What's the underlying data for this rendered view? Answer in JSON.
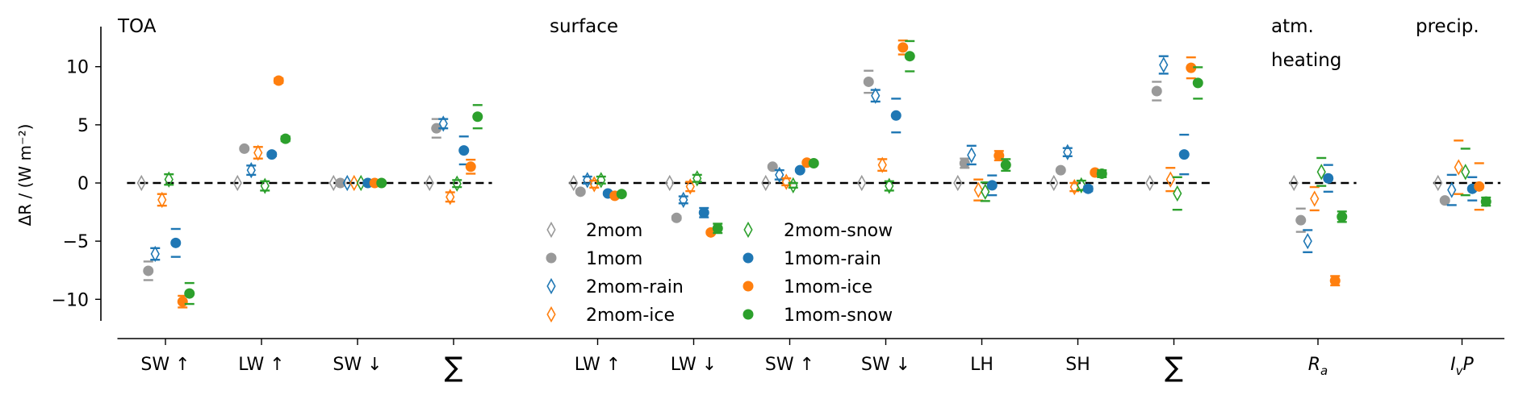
{
  "chart_data": {
    "type": "scatter",
    "ylabel": "ΔR / (W m⁻²)",
    "ylim": [
      -12,
      13
    ],
    "xlim": [
      -0.5,
      14
    ],
    "yticks": [
      -10,
      -5,
      0,
      5,
      10
    ],
    "ytick_labels": [
      "−10",
      "−5",
      "0",
      "5",
      "10"
    ],
    "grid": false,
    "legend_position": "lower-center",
    "section_titles": [
      {
        "lines": [
          "TOA"
        ],
        "x": -0.5
      },
      {
        "lines": [
          "surface"
        ],
        "x": 4.0
      },
      {
        "lines": [
          "atm.",
          "heating"
        ],
        "x": 11.6
      },
      {
        "lines": [
          "precip."
        ],
        "x": 13.1
      }
    ],
    "zero_line_segments": [
      [
        -0.4,
        3.4
      ],
      [
        4.2,
        10.9
      ],
      [
        11.7,
        12.4
      ],
      [
        13.2,
        13.9
      ]
    ],
    "categories": [
      {
        "label": "SW ↑",
        "x": 0
      },
      {
        "label": "LW ↑",
        "x": 1
      },
      {
        "label": "SW ↓",
        "x": 2
      },
      {
        "label": "∑",
        "x": 3,
        "big": true
      },
      {
        "label": "LW ↑",
        "x": 4.5
      },
      {
        "label": "LW ↓",
        "x": 5.5
      },
      {
        "label": "SW ↑",
        "x": 6.5
      },
      {
        "label": "SW ↓",
        "x": 7.5
      },
      {
        "label": "LH",
        "x": 8.5
      },
      {
        "label": "SH",
        "x": 9.5
      },
      {
        "label": "∑",
        "x": 10.5,
        "big": true
      },
      {
        "label": "R",
        "sub": "a",
        "suffix": "",
        "italic": true,
        "x": 12
      },
      {
        "label": "I",
        "sub": "v",
        "suffix": "P",
        "italic": true,
        "x": 13.5
      }
    ],
    "series": [
      {
        "name": "2mom",
        "color": "#999999",
        "marker": "diamond-open",
        "values": [
          0,
          0,
          0,
          0,
          0,
          0,
          0,
          0,
          0,
          0,
          0,
          0,
          0
        ],
        "errors": [
          0,
          0,
          0,
          0,
          0,
          0,
          0,
          0,
          0,
          0,
          0,
          0,
          0
        ]
      },
      {
        "name": "1mom",
        "color": "#999999",
        "marker": "circle",
        "values": [
          -7.55,
          2.95,
          0,
          4.7,
          -0.75,
          -3.0,
          1.4,
          8.7,
          1.7,
          1.1,
          7.9,
          -3.2,
          -1.5
        ],
        "errors": [
          0.8,
          0.1,
          0.05,
          0.8,
          0.1,
          0.15,
          0.1,
          0.95,
          0.4,
          0.1,
          0.8,
          1.0,
          0.1
        ]
      },
      {
        "name": "2mom-rain",
        "color": "#1f77b4",
        "marker": "diamond-open",
        "values": [
          -6.1,
          1.1,
          0,
          5.1,
          0.25,
          -1.45,
          0.7,
          7.5,
          2.4,
          2.65,
          10.15,
          -5.0,
          -0.6
        ],
        "errors": [
          0.5,
          0.4,
          0.05,
          0.4,
          0.3,
          0.3,
          0.4,
          0.5,
          0.8,
          0.35,
          0.75,
          0.95,
          1.3
        ]
      },
      {
        "name": "2mom-ice",
        "color": "#ff7f0e",
        "marker": "diamond-open",
        "values": [
          -1.45,
          2.6,
          0,
          -1.2,
          -0.1,
          -0.3,
          0.1,
          1.55,
          -0.6,
          -0.35,
          0.3,
          -1.35,
          1.35
        ],
        "errors": [
          0.5,
          0.5,
          0.05,
          0.4,
          0.3,
          0.4,
          0.3,
          0.5,
          0.9,
          0.35,
          1.0,
          1.0,
          2.3
        ]
      },
      {
        "name": "2mom-snow",
        "color": "#2ca02c",
        "marker": "diamond-open",
        "values": [
          0.3,
          -0.25,
          0,
          -0.05,
          0.25,
          0.4,
          -0.2,
          -0.25,
          -0.75,
          -0.2,
          -0.9,
          0.95,
          0.95
        ],
        "errors": [
          0.45,
          0.4,
          0.05,
          0.3,
          0.3,
          0.3,
          0.2,
          0.4,
          0.8,
          0.4,
          1.4,
          1.2,
          2.0
        ]
      },
      {
        "name": "1mom-rain",
        "color": "#1f77b4",
        "marker": "circle",
        "values": [
          -5.15,
          2.45,
          0,
          2.8,
          -0.9,
          -2.55,
          1.1,
          5.8,
          -0.2,
          -0.5,
          2.45,
          0.4,
          -0.5
        ],
        "errors": [
          1.2,
          0.15,
          0.05,
          1.2,
          0.1,
          0.4,
          0.1,
          1.45,
          0.85,
          0.2,
          1.7,
          1.15,
          1.0
        ]
      },
      {
        "name": "1mom-ice",
        "color": "#ff7f0e",
        "marker": "circle",
        "values": [
          -10.2,
          8.8,
          0,
          1.4,
          -1.1,
          -4.25,
          1.75,
          11.65,
          2.35,
          0.9,
          9.9,
          -8.4,
          -0.3
        ],
        "errors": [
          0.5,
          0.2,
          0.05,
          0.6,
          0.1,
          0.1,
          0.1,
          0.6,
          0.4,
          0.1,
          0.9,
          0.4,
          2.0
        ]
      },
      {
        "name": "1mom-snow",
        "color": "#2ca02c",
        "marker": "circle",
        "values": [
          -9.5,
          3.8,
          0,
          5.7,
          -0.95,
          -3.9,
          1.7,
          10.9,
          1.55,
          0.8,
          8.6,
          -2.9,
          -1.6
        ],
        "errors": [
          0.9,
          0.2,
          0.05,
          1.0,
          0.1,
          0.4,
          0.1,
          1.3,
          0.5,
          0.3,
          1.35,
          0.45,
          0.35
        ]
      }
    ]
  }
}
